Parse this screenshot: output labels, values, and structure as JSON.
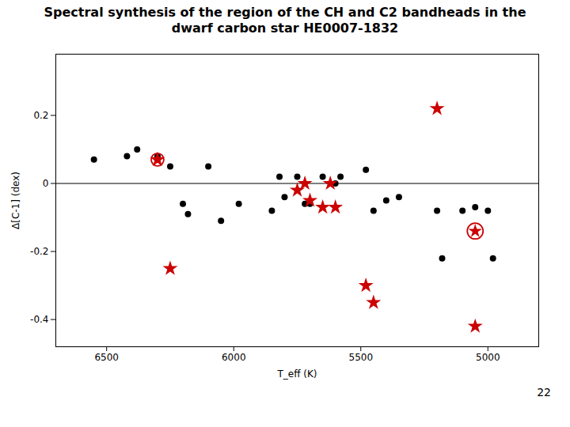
{
  "chart_data": {
    "type": "scatter",
    "title": "Spectral synthesis of the region of the CH and C2 bandheads in the\ndwarf carbon star HE0007-1832",
    "xlabel": "T_eff (K)",
    "ylabel": "Δ[C-1] (dex)",
    "xlim": [
      6700,
      4800
    ],
    "ylim": [
      -0.48,
      0.38
    ],
    "xticks": [
      6500,
      6000,
      5500,
      5000
    ],
    "yticks": [
      -0.4,
      -0.2,
      0,
      0.2
    ],
    "grid": false,
    "series": [
      {
        "type": "hline",
        "color": "#000000",
        "values": [
          0.0
        ]
      },
      {
        "marker": "circle",
        "color": "#000000",
        "x": [
          6550,
          6420,
          6380,
          6300,
          6250,
          6200,
          6180,
          6100,
          6050,
          5980,
          5850,
          5820,
          5800,
          5750,
          5720,
          5700,
          5650,
          5600,
          5580,
          5480,
          5450,
          5400,
          5350,
          5200,
          5180,
          5100,
          5050,
          5000,
          4980
        ],
        "values": [
          0.07,
          0.08,
          0.1,
          0.08,
          0.05,
          -0.06,
          -0.09,
          0.05,
          -0.11,
          -0.06,
          -0.08,
          0.02,
          -0.04,
          0.02,
          -0.06,
          -0.06,
          0.02,
          0.0,
          0.02,
          0.04,
          -0.08,
          -0.05,
          -0.04,
          -0.08,
          -0.22,
          -0.08,
          -0.07,
          -0.08,
          -0.22
        ]
      },
      {
        "marker": "star",
        "color": "#cc0000",
        "x": [
          6300,
          6250,
          5750,
          5720,
          5700,
          5650,
          5620,
          5600,
          5480,
          5450,
          5200,
          5050
        ],
        "values": [
          0.07,
          -0.25,
          -0.02,
          0.0,
          -0.05,
          -0.07,
          0.0,
          -0.07,
          -0.3,
          -0.35,
          0.22,
          -0.42
        ]
      },
      {
        "marker": "double_circle",
        "color": "#cc0000",
        "x": [
          6300
        ],
        "values": [
          0.07
        ]
      },
      {
        "marker": "circled_star",
        "color": "#cc0000",
        "x": [
          5050
        ],
        "values": [
          -0.14
        ]
      }
    ],
    "annotations": [
      "22"
    ]
  }
}
